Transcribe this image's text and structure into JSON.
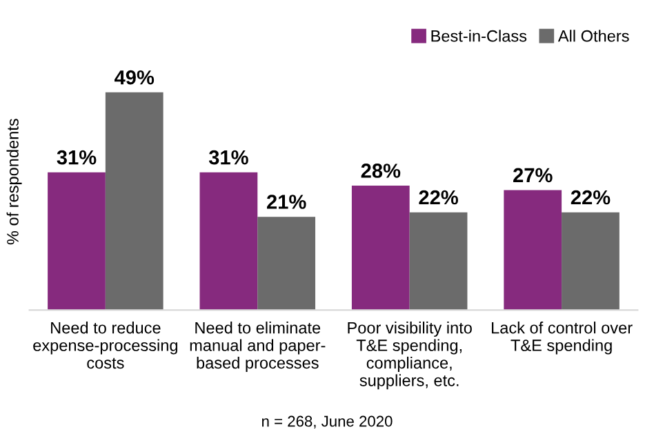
{
  "chart_data": {
    "type": "bar",
    "ylabel": "% of respondents",
    "categories": [
      "Need to reduce\nexpense-processing\ncosts",
      "Need to eliminate\nmanual and paper-\nbased processes",
      "Poor visibility into\nT&E spending,\ncompliance,\nsuppliers, etc.",
      "Lack of control over\nT&E spending"
    ],
    "series": [
      {
        "name": "Best-in-Class",
        "color": "#862a7e",
        "values": [
          31,
          31,
          28,
          27
        ],
        "value_labels": [
          "31%",
          "31%",
          "28%",
          "27%"
        ]
      },
      {
        "name": "All Others",
        "color": "#6b6b6b",
        "values": [
          49,
          21,
          22,
          22
        ],
        "value_labels": [
          "49%",
          "21%",
          "22%",
          "22%"
        ]
      }
    ],
    "legend": "top right",
    "grid": false,
    "tick_labels": "x",
    "annotations": [
      "n = 268, June 2020"
    ]
  }
}
